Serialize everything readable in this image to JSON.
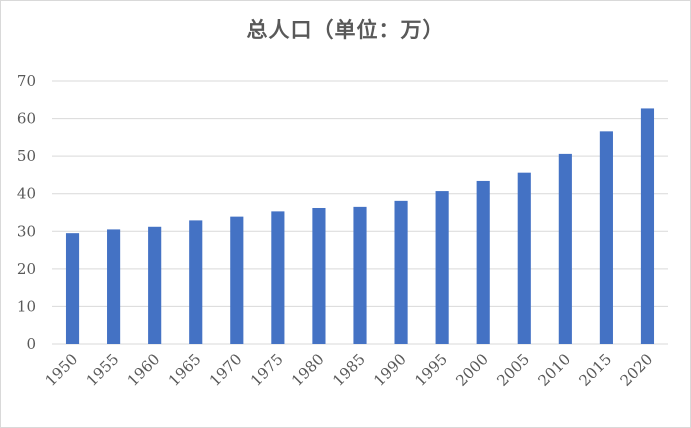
{
  "chart_data": {
    "type": "bar",
    "title": "总人口（单位：万）",
    "xlabel": "",
    "ylabel": "",
    "categories": [
      "1950",
      "1955",
      "1960",
      "1965",
      "1970",
      "1975",
      "1980",
      "1985",
      "1990",
      "1995",
      "2000",
      "2005",
      "2010",
      "2015",
      "2020"
    ],
    "values": [
      29.5,
      30.5,
      31.2,
      32.9,
      33.9,
      35.3,
      36.2,
      36.5,
      38.1,
      40.7,
      43.4,
      45.6,
      50.6,
      56.6,
      62.7
    ],
    "ylim": [
      0,
      70
    ],
    "yticks": [
      "0",
      "10",
      "20",
      "30",
      "40",
      "50",
      "60",
      "70"
    ],
    "grid": true,
    "legend": "none",
    "bar_color": "#4472C4",
    "grid_color": "#d9d9d9",
    "text_color": "#595959"
  }
}
